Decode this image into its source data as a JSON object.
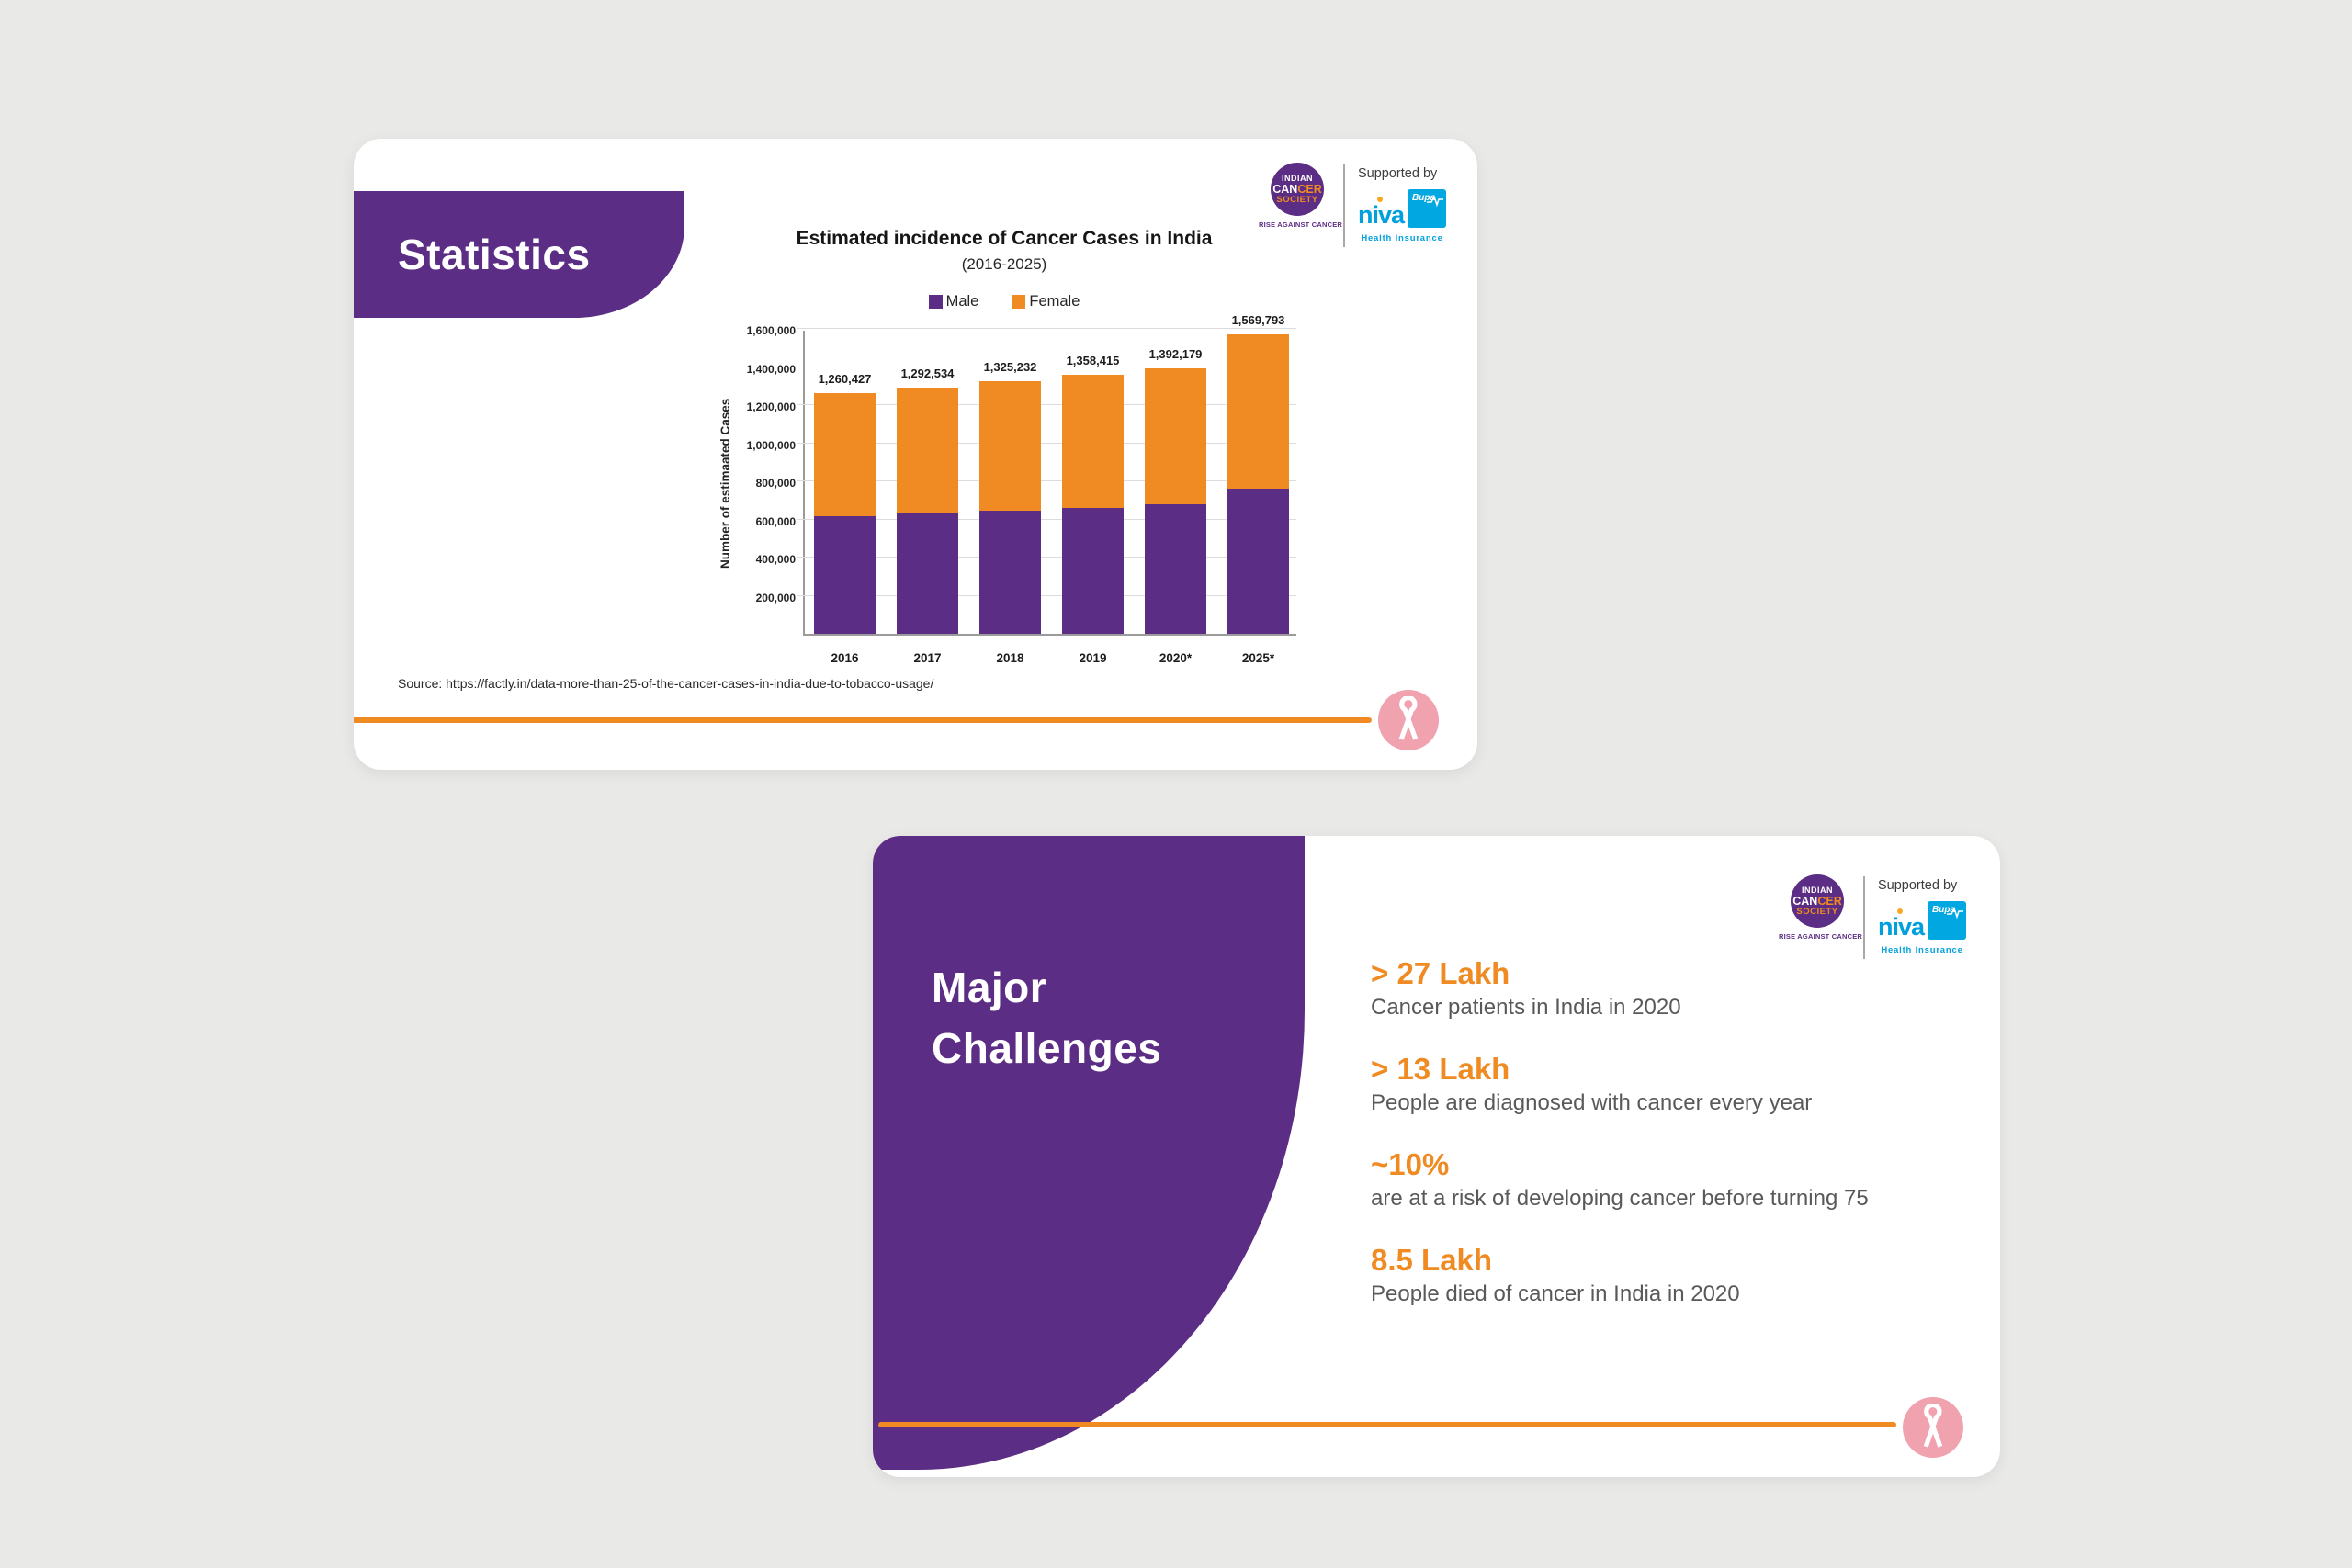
{
  "slide1": {
    "title": "Statistics",
    "source": "Source: https://factly.in/data-more-than-25-of-the-cancer-cases-in-india-due-to-tobacco-usage/"
  },
  "slide2": {
    "title": "Major Challenges",
    "stats": [
      {
        "value": "> 27 Lakh",
        "description": "Cancer patients in India in 2020"
      },
      {
        "value": "> 13 Lakh",
        "description": "People are diagnosed with cancer every year"
      },
      {
        "value": "~10%",
        "description": "are at a risk of developing cancer before turning 75"
      },
      {
        "value": "8.5 Lakh",
        "description": "People died of cancer in India in 2020"
      }
    ]
  },
  "logos": {
    "ics": {
      "line1": "INDIAN",
      "line2a": "CAN",
      "line2b": "CER",
      "line3": "SOCIETY",
      "tagline": "RISE AGAINST CANCER"
    },
    "supported_by": "Supported by",
    "niva": {
      "wordmark": "niva",
      "bupa": "Bupa",
      "caption": "Health Insurance"
    }
  },
  "chart_data": {
    "type": "bar",
    "stacked": true,
    "title": "Estimated incidence of Cancer Cases in India",
    "subtitle": "(2016-2025)",
    "ylabel": "Number of estimaated Cases",
    "xlabel": "",
    "categories": [
      "2016",
      "2017",
      "2018",
      "2019",
      "2020*",
      "2025*"
    ],
    "series": [
      {
        "name": "Male",
        "color": "#5c2d84",
        "values": [
          615000,
          635000,
          648000,
          660000,
          679000,
          763000
        ]
      },
      {
        "name": "Female",
        "color": "#ef8b22",
        "values": [
          645427,
          657534,
          677232,
          698415,
          713179,
          806793
        ]
      }
    ],
    "totals": [
      "1,260,427",
      "1,292,534",
      "1,325,232",
      "1,358,415",
      "1,392,179",
      "1,569,793"
    ],
    "yticks": [
      "200,000",
      "400,000",
      "600,000",
      "800,000",
      "1,000,000",
      "1,200,000",
      "1,400,000",
      "1,600,000"
    ],
    "ylim": [
      0,
      1600000
    ],
    "grid": true,
    "legend_position": "top"
  },
  "colors": {
    "brand_purple": "#5c2d84",
    "accent_orange": "#ef8b22",
    "ribbon_pink": "#f0a2af",
    "niva_blue": "#00a0dd",
    "background": "#e9e9e7"
  }
}
